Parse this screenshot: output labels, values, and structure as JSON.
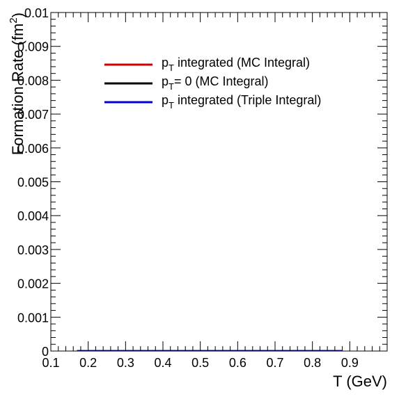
{
  "chart_data": {
    "type": "line",
    "title": "",
    "xlabel": "T (GeV)",
    "ylabel": "Formation Rate (fm^2)",
    "ylabel_main": "Formation Rate (fm",
    "ylabel_sup": "2",
    "ylabel_tail": ")",
    "xlim": [
      0.1,
      1.0
    ],
    "ylim": [
      0,
      0.01
    ],
    "x_ticks": [
      0.1,
      0.2,
      0.3,
      0.4,
      0.5,
      0.6,
      0.7,
      0.8,
      0.9
    ],
    "x_tick_labels": [
      "0.1",
      "0.2",
      "0.3",
      "0.4",
      "0.5",
      "0.6",
      "0.7",
      "0.8",
      "0.9"
    ],
    "y_ticks": [
      0,
      0.001,
      0.002,
      0.003,
      0.004,
      0.005,
      0.006,
      0.007,
      0.008,
      0.009,
      0.01
    ],
    "y_tick_labels": [
      "0",
      "0.001",
      "0.002",
      "0.003",
      "0.004",
      "0.005",
      "0.006",
      "0.007",
      "0.008",
      "0.009",
      "0.01"
    ],
    "grid": false,
    "legend_position": "top-center",
    "series": [
      {
        "name": "p_T integrated (MC Integral)",
        "label_main": "p",
        "label_sub": "T",
        "label_rest": " integrated (MC Integral)",
        "color": "#cc0000",
        "x": [
          0.17,
          0.2,
          0.3,
          0.4,
          0.5,
          0.6,
          0.7,
          0.8,
          0.88
        ],
        "y": [
          0,
          0,
          0,
          0,
          0,
          0,
          0,
          0,
          0
        ]
      },
      {
        "name": "p_T= 0 (MC Integral)",
        "label_main": "p",
        "label_sub": "T",
        "label_rest": "= 0 (MC Integral)",
        "color": "#000000",
        "x": [
          0.17,
          0.2,
          0.3,
          0.4,
          0.5,
          0.6,
          0.7,
          0.8,
          0.88
        ],
        "y": [
          0,
          0,
          0,
          0,
          0,
          0,
          0,
          0,
          0
        ]
      },
      {
        "name": "p_T integrated (Triple Integral)",
        "label_main": "p",
        "label_sub": "T",
        "label_rest": " integrated (Triple Integral)",
        "color": "#0000cc",
        "x": [
          0.17,
          0.2,
          0.3,
          0.4,
          0.5,
          0.6,
          0.7,
          0.8,
          0.88
        ],
        "y": [
          0,
          0,
          0,
          0,
          0,
          0,
          0,
          0,
          0
        ]
      }
    ]
  }
}
